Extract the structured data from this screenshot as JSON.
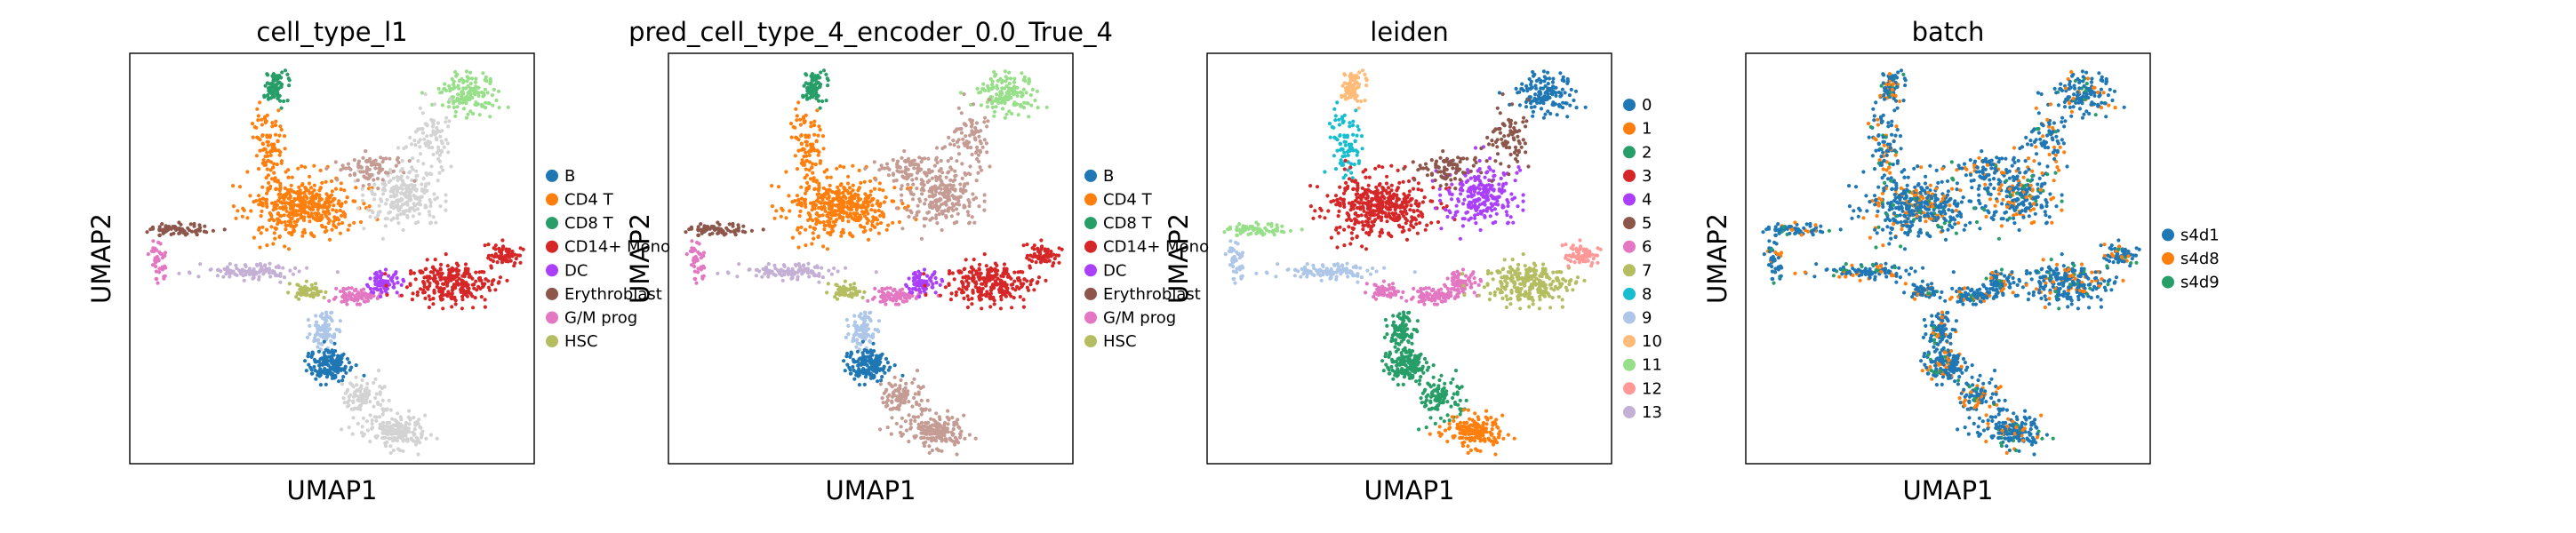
{
  "chart_data": [
    {
      "type": "scatter",
      "title": "cell_type_l1",
      "xlabel": "UMAP1",
      "ylabel": "UMAP2",
      "legend_placement": "right",
      "grid": false,
      "legend": [
        {
          "label": "B",
          "color": "#1f77b4"
        },
        {
          "label": "CD4 T",
          "color": "#ff7f0e"
        },
        {
          "label": "CD8 T",
          "color": "#279e68"
        },
        {
          "label": "CD14+ Mono",
          "color": "#d62728"
        },
        {
          "label": "DC",
          "color": "#aa40fc"
        },
        {
          "label": "Erythroblast",
          "color": "#8c564b"
        },
        {
          "label": "G/M prog",
          "color": "#e377c2"
        },
        {
          "label": "HSC",
          "color": "#b5bd61"
        }
      ]
    },
    {
      "type": "scatter",
      "title": "pred_cell_type_4_encoder_0.0_True_4",
      "xlabel": "UMAP1",
      "ylabel": "UMAP2",
      "legend_placement": "right",
      "grid": false,
      "legend": [
        {
          "label": "B",
          "color": "#1f77b4"
        },
        {
          "label": "CD4 T",
          "color": "#ff7f0e"
        },
        {
          "label": "CD8 T",
          "color": "#279e68"
        },
        {
          "label": "CD14+ Mono",
          "color": "#d62728"
        },
        {
          "label": "DC",
          "color": "#aa40fc"
        },
        {
          "label": "Erythroblast",
          "color": "#8c564b"
        },
        {
          "label": "G/M prog",
          "color": "#e377c2"
        },
        {
          "label": "HSC",
          "color": "#b5bd61"
        }
      ]
    },
    {
      "type": "scatter",
      "title": "leiden",
      "xlabel": "UMAP1",
      "ylabel": "UMAP2",
      "legend_placement": "right",
      "grid": false,
      "legend": [
        {
          "label": "0",
          "color": "#1f77b4"
        },
        {
          "label": "1",
          "color": "#ff7f0e"
        },
        {
          "label": "2",
          "color": "#279e68"
        },
        {
          "label": "3",
          "color": "#d62728"
        },
        {
          "label": "4",
          "color": "#aa40fc"
        },
        {
          "label": "5",
          "color": "#8c564b"
        },
        {
          "label": "6",
          "color": "#e377c2"
        },
        {
          "label": "7",
          "color": "#b5bd61"
        },
        {
          "label": "8",
          "color": "#17becf"
        },
        {
          "label": "9",
          "color": "#aec7e8"
        },
        {
          "label": "10",
          "color": "#ffbb78"
        },
        {
          "label": "11",
          "color": "#98df8a"
        },
        {
          "label": "12",
          "color": "#ff9896"
        },
        {
          "label": "13",
          "color": "#c5b0d5"
        }
      ]
    },
    {
      "type": "scatter",
      "title": "batch",
      "xlabel": "UMAP1",
      "ylabel": "UMAP2",
      "legend_placement": "right",
      "grid": false,
      "legend": [
        {
          "label": "s4d1",
          "color": "#1f77b4"
        },
        {
          "label": "s4d8",
          "color": "#ff7f0e"
        },
        {
          "label": "s4d9",
          "color": "#279e68"
        }
      ]
    }
  ]
}
